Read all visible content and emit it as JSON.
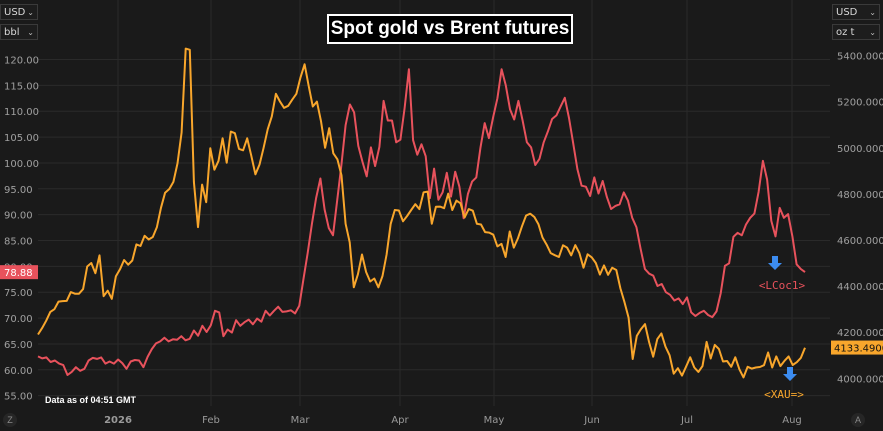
{
  "title": "Spot gold vs Brent futures",
  "data_note": "Data as of 04:51 GMT",
  "left_axis_controls": {
    "currency": "USD",
    "unit": "bbl"
  },
  "right_axis_controls": {
    "currency": "USD",
    "unit": "oz t"
  },
  "corner_buttons": {
    "left": "Z",
    "right": "A"
  },
  "chart_data": {
    "type": "line",
    "x_ticks": [
      "2026",
      "Feb",
      "Mar",
      "Apr",
      "May",
      "Jun",
      "Jul",
      "Aug"
    ],
    "y_left": {
      "ticks": [
        "120.00",
        "115.00",
        "110.00",
        "105.00",
        "100.00",
        "95.00",
        "90.00",
        "85.00",
        "80.00",
        "75.00",
        "70.00",
        "65.00",
        "60.00",
        "55.00"
      ],
      "ylim": [
        53,
        123
      ]
    },
    "y_right": {
      "ticks": [
        "5400.0000",
        "5200.0000",
        "5000.0000",
        "4800.0000",
        "4600.0000",
        "4400.0000",
        "4200.0000",
        "4000.0000"
      ],
      "ylim": [
        3880,
        5450
      ]
    },
    "grid": true,
    "series": [
      {
        "name": "<LCoc1>",
        "axis": "left",
        "color": "#e8525c",
        "last_value": "78.88",
        "values": [
          62.6,
          62.2,
          62.4,
          61.5,
          61.8,
          61.2,
          60.9,
          59.0,
          59.6,
          60.5,
          59.8,
          60.2,
          61.8,
          62.3,
          62.1,
          62.4,
          61.2,
          61.6,
          61.2,
          62.0,
          61.3,
          60.2,
          61.6,
          61.9,
          61.8,
          60.5,
          62.5,
          64.0,
          65.1,
          65.5,
          66.2,
          65.5,
          65.9,
          65.8,
          66.5,
          65.7,
          66.0,
          67.6,
          66.6,
          68.5,
          67.3,
          68.6,
          71.4,
          71.1,
          66.5,
          67.8,
          67.2,
          69.6,
          68.5,
          69.2,
          69.7,
          68.8,
          69.9,
          69.3,
          71.4,
          70.5,
          71.4,
          72.2,
          71.2,
          71.3,
          71.5,
          70.9,
          72.4,
          77.6,
          82.6,
          88.2,
          93.2,
          97.0,
          91.0,
          87.4,
          86.0,
          92.8,
          99.6,
          107.3,
          111.3,
          109.8,
          103.3,
          100.2,
          97.4,
          103.0,
          99.4,
          103.1,
          112.0,
          108.2,
          108.2,
          104.0,
          104.5,
          110.6,
          118.1,
          104.4,
          101.6,
          103.6,
          101.3,
          93.2,
          98.9,
          92.9,
          94.3,
          98.1,
          93.5,
          98.3,
          95.4,
          89.3,
          94.0,
          96.4,
          97.2,
          103.0,
          107.7,
          104.8,
          108.8,
          112.5,
          118.1,
          115.0,
          110.4,
          108.4,
          112.0,
          108.2,
          104.0,
          103.0,
          99.6,
          100.8,
          104.0,
          106.1,
          108.5,
          109.2,
          110.9,
          112.6,
          108.7,
          103.8,
          98.8,
          95.6,
          95.4,
          93.6,
          97.2,
          94.1,
          96.5,
          93.4,
          91.1,
          91.7,
          92.0,
          94.3,
          92.7,
          89.4,
          87.6,
          83.4,
          79.5,
          78.6,
          78.2,
          76.2,
          76.6,
          75.0,
          74.5,
          73.4,
          73.8,
          72.7,
          74.0,
          71.1,
          70.4,
          71.0,
          71.4,
          70.6,
          70.2,
          71.3,
          74.8,
          80.1,
          80.6,
          85.7,
          86.5,
          86.0,
          88.1,
          89.4,
          90.2,
          94.4,
          100.4,
          96.8,
          88.8,
          85.8,
          91.3,
          89.4,
          90.1,
          85.8,
          80.4,
          79.5,
          78.9
        ]
      },
      {
        "name": "<XAU=>",
        "axis": "right",
        "color": "#f8a62c",
        "last_value": "4133.4900",
        "values": [
          4190,
          4218,
          4250,
          4288,
          4300,
          4333,
          4335,
          4336,
          4374,
          4367,
          4367,
          4387,
          4485,
          4500,
          4456,
          4533,
          4356,
          4380,
          4345,
          4443,
          4473,
          4513,
          4493,
          4511,
          4581,
          4574,
          4618,
          4602,
          4613,
          4656,
          4740,
          4805,
          4821,
          4852,
          4932,
          5066,
          5430,
          5425,
          4852,
          4656,
          4840,
          4764,
          4998,
          4905,
          4943,
          5041,
          4935,
          5070,
          5063,
          4995,
          4989,
          5041,
          4965,
          4885,
          4927,
          5000,
          5080,
          5136,
          5234,
          5200,
          5173,
          5182,
          5209,
          5234,
          5305,
          5362,
          5268,
          5179,
          5200,
          5115,
          5000,
          5085,
          4976,
          4950,
          4880,
          4670,
          4590,
          4395,
          4451,
          4537,
          4461,
          4420,
          4433,
          4395,
          4444,
          4537,
          4670,
          4730,
          4728,
          4681,
          4704,
          4730,
          4755,
          4734,
          4807,
          4810,
          4670,
          4744,
          4745,
          4738,
          4801,
          4730,
          4771,
          4759,
          4698,
          4734,
          4727,
          4670,
          4667,
          4634,
          4632,
          4623,
          4572,
          4583,
          4526,
          4637,
          4567,
          4607,
          4660,
          4706,
          4714,
          4700,
          4669,
          4611,
          4580,
          4543,
          4534,
          4526,
          4577,
          4567,
          4533,
          4578,
          4543,
          4480,
          4538,
          4525,
          4500,
          4450,
          4490,
          4449,
          4480,
          4470,
          4390,
          4330,
          4263,
          4084,
          4184,
          4213,
          4235,
          4157,
          4094,
          4170,
          4195,
          4137,
          4100,
          4020,
          4044,
          4012,
          4051,
          4091,
          4047,
          4028,
          4053,
          4158,
          4086,
          4145,
          4127,
          4073,
          4075,
          4050,
          4091,
          4039,
          4004,
          4050,
          4042,
          4047,
          4049,
          4057,
          4112,
          4047,
          4095,
          4053,
          4076,
          4095,
          4058,
          4070,
          4089,
          4133
        ]
      }
    ],
    "annotations": [
      {
        "text": "<LCoc1>",
        "color": "#e8525c"
      },
      {
        "text": "<XAU=>",
        "color": "#f8a62c"
      }
    ],
    "annotation_arrow_color": "#3c8cf0"
  }
}
